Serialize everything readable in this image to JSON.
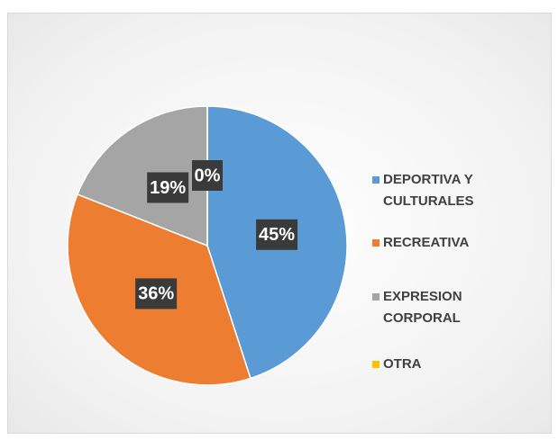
{
  "chart_data": {
    "type": "pie",
    "categories": [
      "DEPORTIVA Y CULTURALES",
      "RECREATIVA",
      "EXPRESION CORPORAL",
      "OTRA"
    ],
    "values": [
      45,
      36,
      19,
      0
    ],
    "value_labels": [
      "45%",
      "36%",
      "19%",
      "0%"
    ],
    "colors": [
      "#5b9bd5",
      "#ed7d31",
      "#a5a5a5",
      "#ffc000"
    ],
    "legend": "right"
  }
}
